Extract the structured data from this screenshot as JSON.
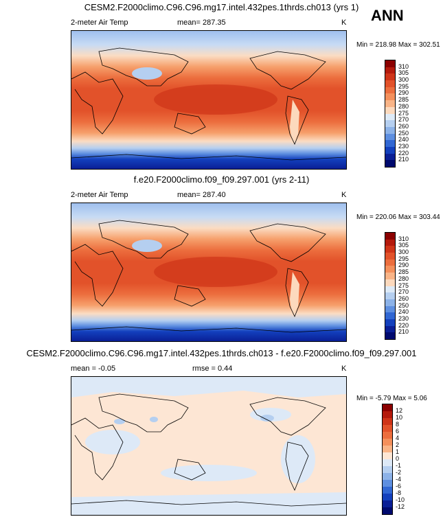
{
  "season": "ANN",
  "panels": [
    {
      "title": "CESM2.F2000climo.C96.C96.mg17.intel.432pes.1thrds.ch013 (yrs 1)",
      "left_label": "2-meter Air Temp",
      "center_label": "mean= 287.35",
      "units": "K",
      "minmax": "Min = 218.98 Max = 302.51",
      "colorbar": {
        "labels": [
          "310",
          "305",
          "300",
          "295",
          "290",
          "285",
          "280",
          "275",
          "270",
          "260",
          "250",
          "240",
          "230",
          "220",
          "210"
        ],
        "colors": [
          "#8b0000",
          "#b41a0c",
          "#cf3418",
          "#e2522a",
          "#ec6e3e",
          "#f4905c",
          "#f9b487",
          "#fcd9bd",
          "#ddeaf7",
          "#b5cff0",
          "#8cb2e8",
          "#5e8fe0",
          "#3167d3",
          "#1340bd",
          "#0a1f96",
          "#000a6e"
        ]
      }
    },
    {
      "title": "f.e20.F2000climo.f09_f09.297.001 (yrs 2-11)",
      "left_label": "2-meter Air Temp",
      "center_label": "mean= 287.40",
      "units": "K",
      "minmax": "Min = 220.06 Max = 303.44",
      "colorbar": {
        "labels": [
          "310",
          "305",
          "300",
          "295",
          "290",
          "285",
          "280",
          "275",
          "270",
          "260",
          "250",
          "240",
          "230",
          "220",
          "210"
        ],
        "colors": [
          "#8b0000",
          "#b41a0c",
          "#cf3418",
          "#e2522a",
          "#ec6e3e",
          "#f4905c",
          "#f9b487",
          "#fcd9bd",
          "#ddeaf7",
          "#b5cff0",
          "#8cb2e8",
          "#5e8fe0",
          "#3167d3",
          "#1340bd",
          "#0a1f96",
          "#000a6e"
        ]
      }
    },
    {
      "title": "CESM2.F2000climo.C96.C96.mg17.intel.432pes.1thrds.ch013 - f.e20.F2000climo.f09_f09.297.001",
      "left_label": "mean =  -0.05",
      "center_label": "rmse =   0.44",
      "units": "K",
      "minmax": "Min =  -5.79 Max =   5.06",
      "colorbar": {
        "labels": [
          "12",
          "10",
          "8",
          "6",
          "4",
          "2",
          "1",
          "0",
          "-1",
          "-2",
          "-4",
          "-6",
          "-8",
          "-10",
          "-12"
        ],
        "colors": [
          "#8b0000",
          "#b41a0c",
          "#cf3418",
          "#e2522a",
          "#ec6e3e",
          "#f4905c",
          "#f9b487",
          "#fde6d4",
          "#dde9f7",
          "#b5cff0",
          "#8cb2e8",
          "#5e8fe0",
          "#3167d3",
          "#1340bd",
          "#0a1f96",
          "#000a6e"
        ]
      }
    }
  ]
}
